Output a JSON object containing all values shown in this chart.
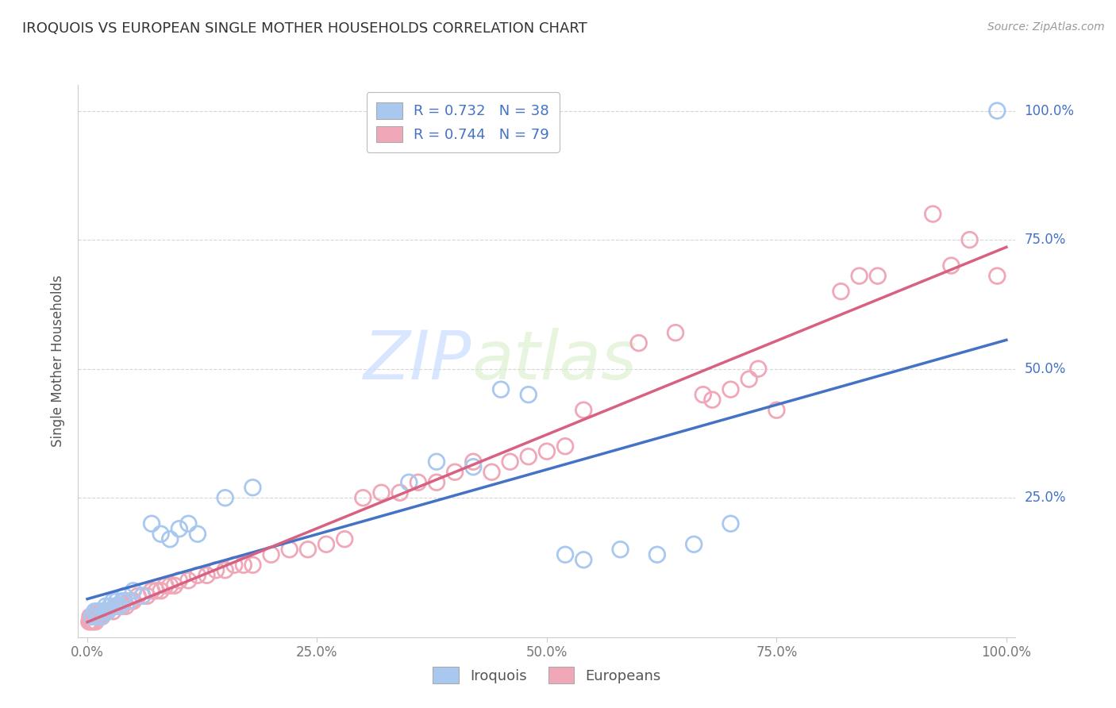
{
  "title": "IROQUOIS VS EUROPEAN SINGLE MOTHER HOUSEHOLDS CORRELATION CHART",
  "source_text": "Source: ZipAtlas.com",
  "ylabel": "Single Mother Households",
  "xlim": [
    -0.01,
    1.01
  ],
  "ylim": [
    -0.02,
    1.05
  ],
  "xtick_vals": [
    0.0,
    0.25,
    0.5,
    0.75,
    1.0
  ],
  "xtick_labels": [
    "0.0%",
    "25.0%",
    "50.0%",
    "75.0%",
    "100.0%"
  ],
  "ytick_vals": [
    0.25,
    0.5,
    0.75,
    1.0
  ],
  "ytick_labels": [
    "25.0%",
    "50.0%",
    "75.0%",
    "100.0%"
  ],
  "iroquois_color": "#A8C8F0",
  "europeans_color": "#F0A8B8",
  "iroquois_edge_color": "#7AAAD8",
  "europeans_edge_color": "#D87898",
  "iroquois_line_color": "#4472C4",
  "europeans_line_color": "#D86080",
  "watermark_color": "#DDEEFF",
  "background_color": "#FFFFFF",
  "grid_color": "#CCCCCC",
  "iroquois_R": 0.732,
  "iroquois_N": 38,
  "europeans_R": 0.744,
  "europeans_N": 79,
  "iroquois_points": [
    [
      0.005,
      0.02
    ],
    [
      0.008,
      0.03
    ],
    [
      0.01,
      0.02
    ],
    [
      0.012,
      0.03
    ],
    [
      0.015,
      0.02
    ],
    [
      0.018,
      0.03
    ],
    [
      0.02,
      0.04
    ],
    [
      0.022,
      0.03
    ],
    [
      0.025,
      0.04
    ],
    [
      0.028,
      0.05
    ],
    [
      0.03,
      0.04
    ],
    [
      0.032,
      0.05
    ],
    [
      0.035,
      0.04
    ],
    [
      0.038,
      0.05
    ],
    [
      0.04,
      0.06
    ],
    [
      0.045,
      0.05
    ],
    [
      0.05,
      0.07
    ],
    [
      0.06,
      0.06
    ],
    [
      0.07,
      0.2
    ],
    [
      0.08,
      0.18
    ],
    [
      0.09,
      0.17
    ],
    [
      0.1,
      0.19
    ],
    [
      0.11,
      0.2
    ],
    [
      0.12,
      0.18
    ],
    [
      0.15,
      0.25
    ],
    [
      0.18,
      0.27
    ],
    [
      0.35,
      0.28
    ],
    [
      0.38,
      0.32
    ],
    [
      0.42,
      0.31
    ],
    [
      0.45,
      0.46
    ],
    [
      0.48,
      0.45
    ],
    [
      0.52,
      0.14
    ],
    [
      0.54,
      0.13
    ],
    [
      0.58,
      0.15
    ],
    [
      0.62,
      0.14
    ],
    [
      0.66,
      0.16
    ],
    [
      0.7,
      0.2
    ],
    [
      0.99,
      1.0
    ]
  ],
  "europeans_points": [
    [
      0.002,
      0.01
    ],
    [
      0.003,
      0.02
    ],
    [
      0.004,
      0.01
    ],
    [
      0.005,
      0.02
    ],
    [
      0.006,
      0.01
    ],
    [
      0.007,
      0.02
    ],
    [
      0.008,
      0.02
    ],
    [
      0.009,
      0.01
    ],
    [
      0.01,
      0.02
    ],
    [
      0.011,
      0.03
    ],
    [
      0.012,
      0.02
    ],
    [
      0.013,
      0.02
    ],
    [
      0.015,
      0.03
    ],
    [
      0.016,
      0.02
    ],
    [
      0.018,
      0.03
    ],
    [
      0.02,
      0.03
    ],
    [
      0.022,
      0.03
    ],
    [
      0.025,
      0.04
    ],
    [
      0.028,
      0.03
    ],
    [
      0.03,
      0.04
    ],
    [
      0.032,
      0.04
    ],
    [
      0.035,
      0.04
    ],
    [
      0.038,
      0.04
    ],
    [
      0.04,
      0.05
    ],
    [
      0.042,
      0.04
    ],
    [
      0.045,
      0.05
    ],
    [
      0.048,
      0.05
    ],
    [
      0.05,
      0.05
    ],
    [
      0.055,
      0.06
    ],
    [
      0.06,
      0.06
    ],
    [
      0.065,
      0.06
    ],
    [
      0.07,
      0.07
    ],
    [
      0.075,
      0.07
    ],
    [
      0.08,
      0.07
    ],
    [
      0.085,
      0.08
    ],
    [
      0.09,
      0.08
    ],
    [
      0.095,
      0.08
    ],
    [
      0.1,
      0.09
    ],
    [
      0.11,
      0.09
    ],
    [
      0.12,
      0.1
    ],
    [
      0.13,
      0.1
    ],
    [
      0.14,
      0.11
    ],
    [
      0.15,
      0.11
    ],
    [
      0.16,
      0.12
    ],
    [
      0.17,
      0.12
    ],
    [
      0.18,
      0.12
    ],
    [
      0.2,
      0.14
    ],
    [
      0.22,
      0.15
    ],
    [
      0.24,
      0.15
    ],
    [
      0.26,
      0.16
    ],
    [
      0.28,
      0.17
    ],
    [
      0.3,
      0.25
    ],
    [
      0.32,
      0.26
    ],
    [
      0.34,
      0.26
    ],
    [
      0.36,
      0.28
    ],
    [
      0.38,
      0.28
    ],
    [
      0.4,
      0.3
    ],
    [
      0.42,
      0.32
    ],
    [
      0.44,
      0.3
    ],
    [
      0.46,
      0.32
    ],
    [
      0.48,
      0.33
    ],
    [
      0.5,
      0.34
    ],
    [
      0.52,
      0.35
    ],
    [
      0.54,
      0.42
    ],
    [
      0.6,
      0.55
    ],
    [
      0.64,
      0.57
    ],
    [
      0.67,
      0.45
    ],
    [
      0.68,
      0.44
    ],
    [
      0.7,
      0.46
    ],
    [
      0.72,
      0.48
    ],
    [
      0.73,
      0.5
    ],
    [
      0.75,
      0.42
    ],
    [
      0.82,
      0.65
    ],
    [
      0.84,
      0.68
    ],
    [
      0.86,
      0.68
    ],
    [
      0.92,
      0.8
    ],
    [
      0.94,
      0.7
    ],
    [
      0.96,
      0.75
    ],
    [
      0.99,
      0.68
    ]
  ]
}
